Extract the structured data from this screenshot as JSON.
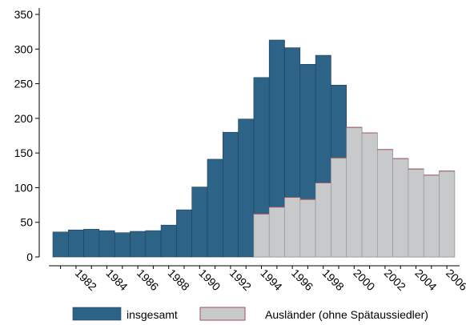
{
  "chart_data": {
    "type": "bar",
    "title": "",
    "xlabel": "",
    "ylabel": "",
    "ylim": [
      0,
      350
    ],
    "yticks": [
      0,
      50,
      100,
      150,
      200,
      250,
      300,
      350
    ],
    "xtick_labels": [
      "1982",
      "1984",
      "1986",
      "1988",
      "1990",
      "1992",
      "1994",
      "1996",
      "1998",
      "2000",
      "2002",
      "2004",
      "2006"
    ],
    "grid": false,
    "legend_position": "bottom",
    "x": [
      1981,
      1982,
      1983,
      1984,
      1985,
      1986,
      1987,
      1988,
      1989,
      1990,
      1991,
      1992,
      1993,
      1994,
      1995,
      1996,
      1997,
      1998,
      1999,
      2000,
      2001,
      2002,
      2003,
      2004,
      2005,
      2006
    ],
    "series": [
      {
        "name": "insgesamt",
        "color": "#2e6388",
        "values": [
          36,
          39,
          40,
          38,
          35,
          37,
          38,
          46,
          68,
          101,
          141,
          180,
          199,
          259,
          313,
          302,
          278,
          291,
          248,
          187,
          179,
          155,
          142,
          127,
          118,
          124
        ]
      },
      {
        "name": "Ausländer (ohne Spätaussiedler)",
        "color": "#c8c9cb",
        "edge_color": "#a0525a",
        "values": [
          null,
          null,
          null,
          null,
          null,
          null,
          null,
          null,
          null,
          null,
          null,
          null,
          null,
          62,
          72,
          86,
          83,
          107,
          143,
          187,
          179,
          155,
          142,
          127,
          118,
          124
        ]
      }
    ]
  }
}
